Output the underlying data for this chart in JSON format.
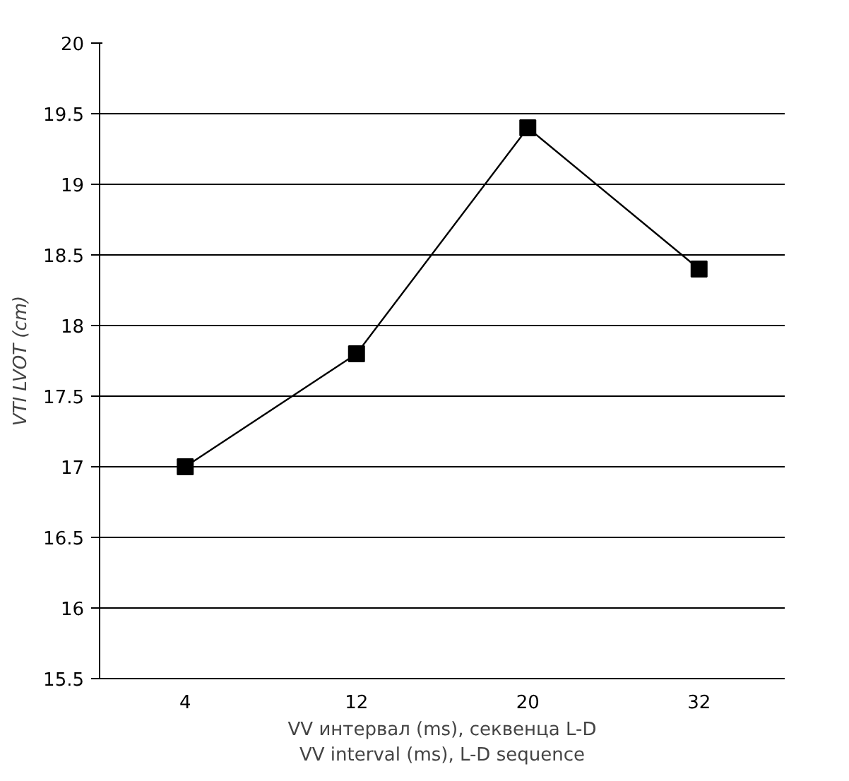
{
  "chart_data": {
    "type": "line",
    "categories": [
      "4",
      "12",
      "20",
      "32"
    ],
    "series": [
      {
        "color": "#000000",
        "values": [
          17.0,
          17.8,
          19.4,
          18.4
        ]
      }
    ],
    "ylim": [
      15.5,
      20
    ],
    "yticks": [
      15.5,
      16,
      16.5,
      17,
      17.5,
      18,
      18.5,
      19,
      19.5,
      20
    ],
    "xlabel": "VV интервал (ms), секвенца L-D\nVV interval (ms), L-D sequence",
    "ylabel": "VTI LVOT (cm)",
    "grid": "y",
    "marker": "square",
    "line_style": "solid"
  }
}
